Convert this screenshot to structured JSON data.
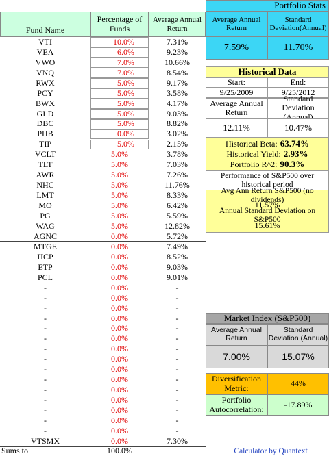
{
  "table": {
    "headers": [
      "Fund Name",
      "Percentage of Funds",
      "Average Annual Return"
    ],
    "rows": [
      [
        "VTI",
        "10.0%",
        "7.31%"
      ],
      [
        "VEA",
        "6.0%",
        "9.23%"
      ],
      [
        "VWO",
        "7.0%",
        "10.66%"
      ],
      [
        "VNQ",
        "7.0%",
        "8.54%"
      ],
      [
        "RWX",
        "5.0%",
        "9.17%"
      ],
      [
        "PCY",
        "5.0%",
        "3.58%"
      ],
      [
        "BWX",
        "5.0%",
        "4.17%"
      ],
      [
        "GLD",
        "5.0%",
        "9.03%"
      ],
      [
        "DBC",
        "5.0%",
        "8.82%"
      ],
      [
        "PHB",
        "0.0%",
        "3.02%"
      ],
      [
        "TIP",
        "5.0%",
        "2.15%"
      ],
      [
        "VCLT",
        "5.0%",
        "3.78%"
      ],
      [
        "TLT",
        "5.0%",
        "7.03%"
      ],
      [
        "AWR",
        "5.0%",
        "7.26%"
      ],
      [
        "NHC",
        "5.0%",
        "11.76%"
      ],
      [
        "LMT",
        "5.0%",
        "8.33%"
      ],
      [
        "MO",
        "5.0%",
        "6.42%"
      ],
      [
        "PG",
        "5.0%",
        "5.59%"
      ],
      [
        "WAG",
        "5.0%",
        "12.82%"
      ],
      [
        "AGNC",
        "0.0%",
        "5.72%"
      ],
      [
        "MTGE",
        "0.0%",
        "7.49%"
      ],
      [
        "HCP",
        "0.0%",
        "8.52%"
      ],
      [
        "ETP",
        "0.0%",
        "9.03%"
      ],
      [
        "PCL",
        "0.0%",
        "9.01%"
      ],
      [
        "-",
        "0.0%",
        "-"
      ],
      [
        "-",
        "0.0%",
        "-"
      ],
      [
        "-",
        "0.0%",
        "-"
      ],
      [
        "-",
        "0.0%",
        "-"
      ],
      [
        "-",
        "0.0%",
        "-"
      ],
      [
        "-",
        "0.0%",
        "-"
      ],
      [
        "-",
        "0.0%",
        "-"
      ],
      [
        "-",
        "0.0%",
        "-"
      ],
      [
        "-",
        "0.0%",
        "-"
      ],
      [
        "-",
        "0.0%",
        "-"
      ],
      [
        "-",
        "0.0%",
        "-"
      ],
      [
        "-",
        "0.0%",
        "-"
      ],
      [
        "-",
        "0.0%",
        "-"
      ],
      [
        "-",
        "0.0%",
        "-"
      ],
      [
        "-",
        "0.0%",
        "-"
      ],
      [
        "VTSMX",
        "0.0%",
        "7.30%"
      ]
    ],
    "sums_label": "Sums to",
    "sums_value": "100.0%"
  },
  "portfolio_stats": {
    "title": "Portfolio Stats",
    "return_label": "Average Annual Return",
    "sd_label": "Standard Deviation(Annual)",
    "return_value": "7.59%",
    "sd_value": "11.70%"
  },
  "historical_data": {
    "title": "Historical Data",
    "start_label": "Start:",
    "end_label": "End:",
    "start": "9/25/2009",
    "end": "9/25/2012",
    "return_label": "Average Annual Return",
    "sd_label": "Standard Deviation (Annual)",
    "return_value": "12.11%",
    "sd_value": "10.47%",
    "beta_label": "Historical Beta:",
    "beta": "63.74%",
    "yield_label": "Historical Yield:",
    "yield": "2.93%",
    "r2_label": "Portfolio R^2:",
    "r2": "90.3%",
    "sp_title": "Performance of S&P500 over historical period",
    "sp_return_label": "Avg Ann Return S&P500 (no dividends)",
    "sp_return": "11.57%",
    "sp_sd_label": "Annual Standard Deviation on S&P500",
    "sp_sd": "15.61%"
  },
  "market_index": {
    "title": "Market Index (S&P500)",
    "return_label": "Average Annual Return",
    "sd_label": "Standard Deviation (Annual)",
    "return_value": "7.00%",
    "sd_value": "15.07%"
  },
  "diversification": {
    "label": "Diversification Metric:",
    "value": "44%"
  },
  "autocorrelation": {
    "label": "Portfolio Autocorrelation:",
    "value": "-17.89%"
  },
  "footer": "Calculator by Quantext"
}
